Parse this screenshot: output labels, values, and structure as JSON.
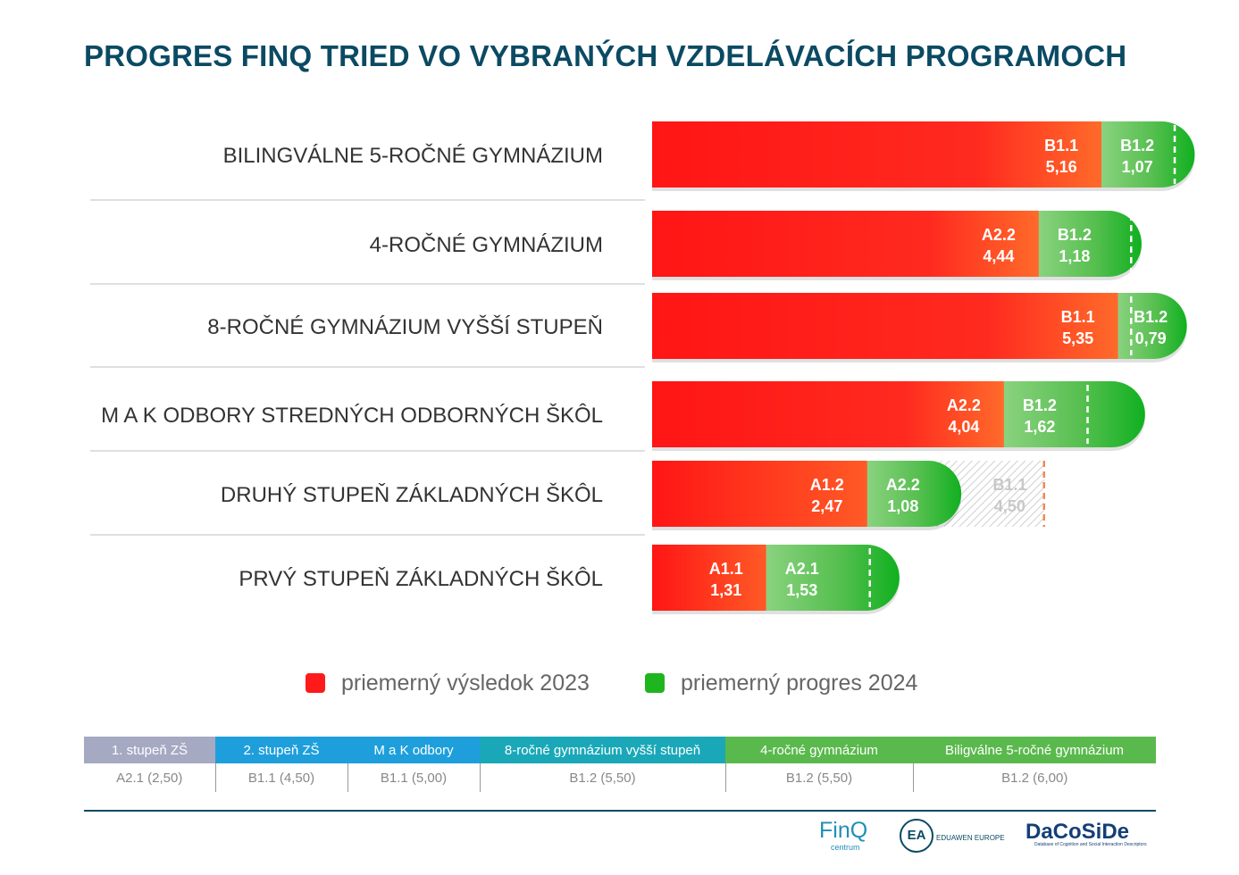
{
  "title": "PROGRES FINQ TRIED VO VYBRANÝCH VZDELÁVACÍCH PROGRAMOCH",
  "colors": {
    "red": "#ff1a1a",
    "green": "#1fb51f",
    "title": "#0b4a63"
  },
  "chart_data": {
    "type": "bar",
    "orientation": "horizontal",
    "stacked": true,
    "title": "PROGRES FINQ TRIED VO VYBRANÝCH VZDELÁVACÍCH PROGRAMOCH",
    "categories": [
      "BILINGVÁLNE 5-ROČNÉ GYMNÁZIUM",
      "4-ROČNÉ GYMNÁZIUM",
      "8-ROČNÉ GYMNÁZIUM VYŠŠÍ STUPEŇ",
      "M A K ODBORY STREDNÝCH ODBORNÝCH ŠKÔL",
      "DRUHÝ STUPEŇ ZÁKLADNÝCH ŠKÔL",
      "PRVÝ STUPEŇ ZÁKLADNÝCH ŠKÔL"
    ],
    "series": [
      {
        "name": "priemerný výsledok 2023",
        "values": [
          5.16,
          4.44,
          5.35,
          4.04,
          2.47,
          1.31
        ],
        "value_labels": [
          "5,16",
          "4,44",
          "5,35",
          "4,04",
          "2,47",
          "1,31"
        ],
        "level_labels": [
          "B1.1",
          "A2.2",
          "B1.1",
          "A2.2",
          "A1.2",
          "A1.1"
        ]
      },
      {
        "name": "priemerný progres 2024",
        "values": [
          1.07,
          1.18,
          0.79,
          1.62,
          1.08,
          1.53
        ],
        "value_labels": [
          "1,07",
          "1,18",
          "0,79",
          "1,62",
          "1,08",
          "1,53"
        ],
        "level_labels": [
          "B1.2",
          "B1.2",
          "B1.2",
          "B1.2",
          "A2.2",
          "A2.1"
        ]
      }
    ],
    "targets": [
      6.0,
      5.5,
      5.5,
      5.0,
      4.5,
      2.5
    ],
    "target_annotation": {
      "row": 4,
      "level": "B1.1",
      "value": 4.5,
      "value_label": "4,50"
    },
    "xlim": [
      0,
      6.6
    ]
  },
  "legend": {
    "items": [
      {
        "label": "priemerný výsledok 2023",
        "color": "#ff1a1a"
      },
      {
        "label": "priemerný progres 2024",
        "color": "#1fb51f"
      }
    ]
  },
  "reference_table": {
    "headers": [
      {
        "label": "1. stupeň ZŠ",
        "color": "#a6a9c2"
      },
      {
        "label": "2. stupeň ZŠ",
        "color": "#1e9fdc"
      },
      {
        "label": "M a K odbory",
        "color": "#1e9fdc"
      },
      {
        "label": "8-ročné gymnázium vyšší stupeň",
        "color": "#1aa8b8"
      },
      {
        "label": "4-ročné gymnázium",
        "color": "#5ab94c"
      },
      {
        "label": "Biligválne 5-ročné gymnázium",
        "color": "#5ab94c"
      }
    ],
    "values": [
      "A2.1 (2,50)",
      "B1.1 (4,50)",
      "B1.1 (5,00)",
      "B1.2 (5,50)",
      "B1.2 (5,50)",
      "B1.2 (6,00)"
    ]
  },
  "logos": {
    "finq": "FinQ",
    "finq_sub": "centrum",
    "eduawen": "EDUAWEN EUROPE",
    "dacoside": "DaCoSiDe",
    "dacoside_sub": "Database of Cognition and Social Interaction Descriptors"
  }
}
